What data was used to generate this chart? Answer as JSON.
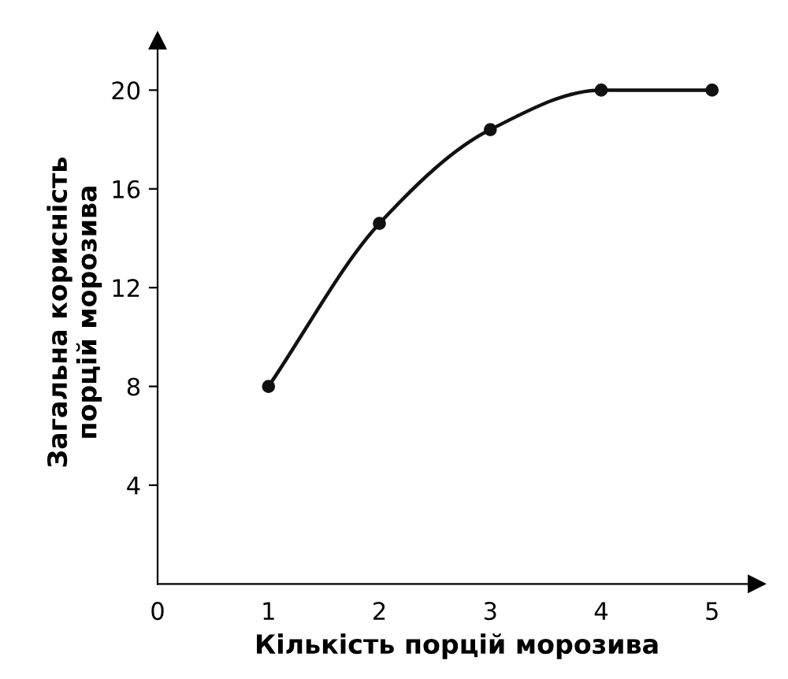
{
  "chart_data": {
    "type": "line",
    "xlabel": "Кількість порцій морозива",
    "ylabel": "Загальна корисність\nпорцій морозива",
    "x": [
      1,
      2,
      3,
      4,
      5
    ],
    "series": [
      {
        "color": "#111111",
        "values": [
          8,
          14.6,
          18.4,
          20,
          20
        ]
      }
    ],
    "xlim": [
      0,
      5.4
    ],
    "ylim": [
      0,
      22
    ],
    "xticks": [
      0,
      1,
      2,
      3,
      4,
      5
    ],
    "yticks": [
      4,
      8,
      12,
      16,
      20
    ],
    "marker": "circle",
    "line_style": "solid",
    "grid": false
  }
}
